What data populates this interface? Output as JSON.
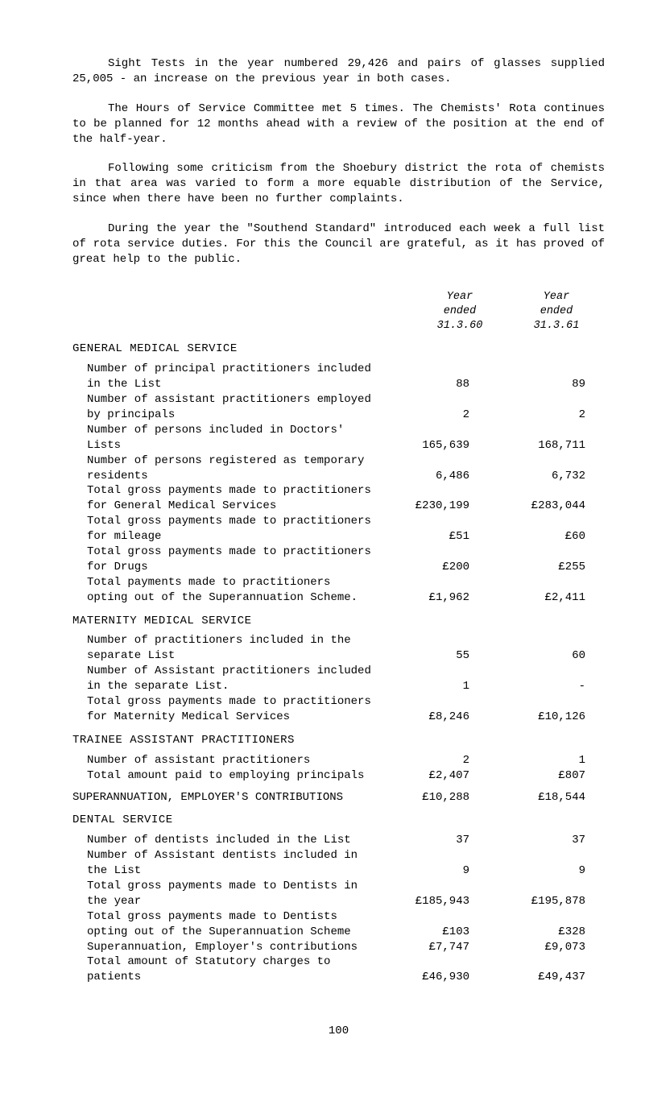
{
  "paragraphs": {
    "p1": "Sight Tests in the year numbered 29,426 and pairs of glasses supplied 25,005 - an increase on the previous year in both cases.",
    "p2": "The Hours of Service Committee met 5 times. The Chemists' Rota continues to be planned for 12 months ahead with a review of the position at the end of the half-year.",
    "p3": "Following some criticism from the Shoebury district the rota of chemists in that area was varied to form a more equable distribution of the Service, since when there have been no further complaints.",
    "p4": "During the year the \"Southend Standard\" introduced each week a full list of rota service duties. For this the Council are grateful, as it has proved of great help to the public."
  },
  "column_headers": {
    "col1": "Year\nended\n31.3.60",
    "col2": "Year\nended\n31.3.61"
  },
  "sections": [
    {
      "title": "GENERAL MEDICAL SERVICE",
      "rows": [
        {
          "label": "Number of principal practitioners included in the List",
          "v1": "88",
          "v2": "89"
        },
        {
          "label": "Number of assistant practitioners employed by principals",
          "v1": "2",
          "v2": "2"
        },
        {
          "label": "Number of persons included in Doctors' Lists",
          "v1": "165,639",
          "v2": "168,711"
        },
        {
          "label": "Number of persons registered as temporary residents",
          "v1": "6,486",
          "v2": "6,732"
        },
        {
          "label": "Total gross payments made to practitioners for General Medical Services",
          "v1": "£230,199",
          "v2": "£283,044"
        },
        {
          "label": "Total gross payments made to practitioners for mileage",
          "v1": "£51",
          "v2": "£60"
        },
        {
          "label": "Total gross payments made to practitioners for Drugs",
          "v1": "£200",
          "v2": "£255"
        },
        {
          "label": "Total payments made to practitioners opting out of the Superannuation Scheme.",
          "v1": "£1,962",
          "v2": "£2,411"
        }
      ]
    },
    {
      "title": "MATERNITY MEDICAL SERVICE",
      "rows": [
        {
          "label": "Number of practitioners included in the separate List",
          "v1": "55",
          "v2": "60"
        },
        {
          "label": "Number of Assistant practitioners included in the separate List.",
          "v1": "1",
          "v2": "-"
        },
        {
          "label": "Total gross payments made to practitioners for Maternity Medical Services",
          "v1": "£8,246",
          "v2": "£10,126"
        }
      ]
    },
    {
      "title": "TRAINEE ASSISTANT PRACTITIONERS",
      "rows": [
        {
          "label": "Number of assistant practitioners",
          "v1": "2",
          "v2": "1"
        },
        {
          "label": "Total amount paid to employing principals",
          "v1": "£2,407",
          "v2": "£807"
        }
      ]
    },
    {
      "title": "SUPERANNUATION, EMPLOYER'S CONTRIBUTIONS",
      "inline": true,
      "rows": [
        {
          "label": "",
          "v1": "£10,288",
          "v2": "£18,544"
        }
      ]
    },
    {
      "title": "DENTAL SERVICE",
      "rows": [
        {
          "label": "Number of dentists included in the List",
          "v1": "37",
          "v2": "37"
        },
        {
          "label": "Number of Assistant dentists included in the List",
          "v1": "9",
          "v2": "9"
        },
        {
          "label": "Total gross payments made to Dentists in the year",
          "v1": "£185,943",
          "v2": "£195,878"
        },
        {
          "label": "Total gross payments made to Dentists opting out of the Superannuation Scheme",
          "v1": "£103",
          "v2": "£328"
        },
        {
          "label": "Superannuation, Employer's contributions",
          "v1": "£7,747",
          "v2": "£9,073"
        },
        {
          "label": "Total amount of Statutory charges to patients",
          "v1": "£46,930",
          "v2": "£49,437"
        }
      ]
    }
  ],
  "page_number": "100"
}
